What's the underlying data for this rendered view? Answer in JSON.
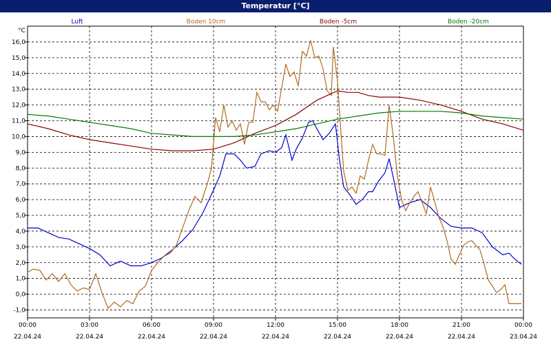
{
  "chart_data": {
    "type": "line",
    "title": "Temperatur [°C]",
    "yunit": "°C",
    "xlim": [
      0,
      24
    ],
    "ylim": [
      -1.5,
      17.0
    ],
    "yticks": [
      -1.0,
      0.0,
      1.0,
      2.0,
      3.0,
      4.0,
      5.0,
      6.0,
      7.0,
      8.0,
      9.0,
      10.0,
      11.0,
      12.0,
      13.0,
      14.0,
      15.0,
      16.0
    ],
    "ytick_labels": [
      "-1,0",
      "0,0",
      "1,0",
      "2,0",
      "3,0",
      "4,0",
      "5,0",
      "6,0",
      "7,0",
      "8,0",
      "9,0",
      "10,0",
      "11,0",
      "12,0",
      "13,0",
      "14,0",
      "15,0",
      "16,0"
    ],
    "xticks": [
      {
        "hour": 0,
        "time": "00:00",
        "date": "22.04.24"
      },
      {
        "hour": 3,
        "time": "03:00",
        "date": "22.04.24"
      },
      {
        "hour": 6,
        "time": "06:00",
        "date": "22.04.24"
      },
      {
        "hour": 9,
        "time": "09:00",
        "date": "22.04.24"
      },
      {
        "hour": 12,
        "time": "12:00",
        "date": "22.04.24"
      },
      {
        "hour": 15,
        "time": "15:00",
        "date": "22.04.24"
      },
      {
        "hour": 18,
        "time": "18:00",
        "date": "22.04.24"
      },
      {
        "hour": 21,
        "time": "21:00",
        "date": "22.04.24"
      },
      {
        "hour": 24,
        "time": "00:00",
        "date": "23.04.24"
      }
    ],
    "grid": true,
    "legend_position": "top",
    "series": [
      {
        "name": "Luft",
        "color": "#0000cc",
        "points": [
          [
            0,
            4.2
          ],
          [
            0.5,
            4.2
          ],
          [
            1.0,
            3.9
          ],
          [
            1.5,
            3.6
          ],
          [
            2.0,
            3.5
          ],
          [
            2.5,
            3.2
          ],
          [
            3.0,
            2.9
          ],
          [
            3.5,
            2.5
          ],
          [
            4.0,
            1.8
          ],
          [
            4.5,
            2.1
          ],
          [
            5.0,
            1.8
          ],
          [
            5.5,
            1.8
          ],
          [
            6.0,
            2.0
          ],
          [
            6.5,
            2.3
          ],
          [
            7.0,
            2.8
          ],
          [
            7.5,
            3.4
          ],
          [
            8.0,
            4.1
          ],
          [
            8.5,
            5.2
          ],
          [
            9.0,
            6.6
          ],
          [
            9.3,
            7.5
          ],
          [
            9.6,
            8.9
          ],
          [
            10.0,
            8.9
          ],
          [
            10.3,
            8.5
          ],
          [
            10.6,
            8.0
          ],
          [
            11.0,
            8.1
          ],
          [
            11.3,
            8.9
          ],
          [
            11.7,
            9.1
          ],
          [
            12.0,
            9.0
          ],
          [
            12.3,
            9.3
          ],
          [
            12.5,
            10.1
          ],
          [
            12.8,
            8.5
          ],
          [
            13.0,
            9.2
          ],
          [
            13.3,
            9.9
          ],
          [
            13.6,
            10.9
          ],
          [
            13.8,
            11.0
          ],
          [
            14.0,
            10.5
          ],
          [
            14.3,
            9.8
          ],
          [
            14.6,
            10.2
          ],
          [
            14.9,
            10.8
          ],
          [
            15.1,
            8.5
          ],
          [
            15.3,
            6.8
          ],
          [
            15.6,
            6.3
          ],
          [
            15.9,
            5.7
          ],
          [
            16.2,
            6.0
          ],
          [
            16.5,
            6.5
          ],
          [
            16.7,
            6.5
          ],
          [
            17.0,
            7.2
          ],
          [
            17.3,
            7.7
          ],
          [
            17.5,
            8.6
          ],
          [
            17.7,
            7.4
          ],
          [
            18.0,
            5.5
          ],
          [
            18.5,
            5.8
          ],
          [
            19.0,
            6.0
          ],
          [
            19.5,
            5.5
          ],
          [
            20.0,
            4.8
          ],
          [
            20.5,
            4.3
          ],
          [
            21.0,
            4.2
          ],
          [
            21.5,
            4.2
          ],
          [
            22.0,
            3.9
          ],
          [
            22.5,
            3.0
          ],
          [
            23.0,
            2.5
          ],
          [
            23.3,
            2.6
          ],
          [
            23.6,
            2.2
          ],
          [
            23.9,
            1.9
          ]
        ]
      },
      {
        "name": "Boden 10cm",
        "color": "#b06a1e",
        "points": [
          [
            0,
            1.4
          ],
          [
            0.3,
            1.6
          ],
          [
            0.6,
            1.5
          ],
          [
            0.9,
            0.9
          ],
          [
            1.2,
            1.3
          ],
          [
            1.5,
            0.8
          ],
          [
            1.8,
            1.3
          ],
          [
            2.1,
            0.6
          ],
          [
            2.4,
            0.2
          ],
          [
            2.7,
            0.4
          ],
          [
            3.0,
            0.3
          ],
          [
            3.3,
            1.3
          ],
          [
            3.6,
            0.1
          ],
          [
            3.9,
            -0.9
          ],
          [
            4.2,
            -0.5
          ],
          [
            4.5,
            -0.8
          ],
          [
            4.8,
            -0.4
          ],
          [
            5.1,
            -0.6
          ],
          [
            5.4,
            0.2
          ],
          [
            5.7,
            0.5
          ],
          [
            6.0,
            1.5
          ],
          [
            6.3,
            2.0
          ],
          [
            6.6,
            2.4
          ],
          [
            6.9,
            2.6
          ],
          [
            7.2,
            3.1
          ],
          [
            7.5,
            4.2
          ],
          [
            7.8,
            5.3
          ],
          [
            8.1,
            6.2
          ],
          [
            8.4,
            5.8
          ],
          [
            8.7,
            7.0
          ],
          [
            8.9,
            8.0
          ],
          [
            9.1,
            11.2
          ],
          [
            9.3,
            10.3
          ],
          [
            9.5,
            12.0
          ],
          [
            9.7,
            10.6
          ],
          [
            9.9,
            11.0
          ],
          [
            10.1,
            10.4
          ],
          [
            10.3,
            10.8
          ],
          [
            10.5,
            9.5
          ],
          [
            10.7,
            10.9
          ],
          [
            10.9,
            10.9
          ],
          [
            11.1,
            12.8
          ],
          [
            11.3,
            12.2
          ],
          [
            11.5,
            12.2
          ],
          [
            11.7,
            11.7
          ],
          [
            11.9,
            12.0
          ],
          [
            12.1,
            11.6
          ],
          [
            12.3,
            13.1
          ],
          [
            12.5,
            14.6
          ],
          [
            12.7,
            13.8
          ],
          [
            12.9,
            14.1
          ],
          [
            13.1,
            13.2
          ],
          [
            13.3,
            15.4
          ],
          [
            13.5,
            15.1
          ],
          [
            13.7,
            16.1
          ],
          [
            13.9,
            15.0
          ],
          [
            14.1,
            15.1
          ],
          [
            14.3,
            14.3
          ],
          [
            14.5,
            12.9
          ],
          [
            14.7,
            12.6
          ],
          [
            14.8,
            15.7
          ],
          [
            15.0,
            13.5
          ],
          [
            15.2,
            9.6
          ],
          [
            15.3,
            7.8
          ],
          [
            15.5,
            6.6
          ],
          [
            15.7,
            6.8
          ],
          [
            15.9,
            6.4
          ],
          [
            16.1,
            7.5
          ],
          [
            16.3,
            7.3
          ],
          [
            16.5,
            8.5
          ],
          [
            16.7,
            9.5
          ],
          [
            16.9,
            8.9
          ],
          [
            17.1,
            8.9
          ],
          [
            17.3,
            8.8
          ],
          [
            17.5,
            12.0
          ],
          [
            17.7,
            10.0
          ],
          [
            17.9,
            7.5
          ],
          [
            18.1,
            6.0
          ],
          [
            18.3,
            5.3
          ],
          [
            18.5,
            5.8
          ],
          [
            18.7,
            6.2
          ],
          [
            18.9,
            6.5
          ],
          [
            19.1,
            5.8
          ],
          [
            19.3,
            5.1
          ],
          [
            19.5,
            6.8
          ],
          [
            19.7,
            5.9
          ],
          [
            19.9,
            4.9
          ],
          [
            20.1,
            4.3
          ],
          [
            20.3,
            3.4
          ],
          [
            20.5,
            2.2
          ],
          [
            20.7,
            1.9
          ],
          [
            20.9,
            2.5
          ],
          [
            21.1,
            3.1
          ],
          [
            21.3,
            3.3
          ],
          [
            21.5,
            3.4
          ],
          [
            21.7,
            3.1
          ],
          [
            21.9,
            2.8
          ],
          [
            22.1,
            1.9
          ],
          [
            22.3,
            0.9
          ],
          [
            22.5,
            0.5
          ],
          [
            22.7,
            0.1
          ],
          [
            22.9,
            0.3
          ],
          [
            23.1,
            0.6
          ],
          [
            23.3,
            -0.6
          ],
          [
            23.6,
            -0.6
          ],
          [
            23.9,
            -0.6
          ]
        ]
      },
      {
        "name": "Boden -5cm",
        "color": "#8b0000",
        "points": [
          [
            0,
            10.8
          ],
          [
            1.0,
            10.5
          ],
          [
            2.0,
            10.1
          ],
          [
            3.0,
            9.8
          ],
          [
            4.0,
            9.6
          ],
          [
            5.0,
            9.4
          ],
          [
            6.0,
            9.2
          ],
          [
            7.0,
            9.1
          ],
          [
            8.0,
            9.1
          ],
          [
            9.0,
            9.2
          ],
          [
            10.0,
            9.6
          ],
          [
            11.0,
            10.2
          ],
          [
            12.0,
            10.7
          ],
          [
            13.0,
            11.4
          ],
          [
            14.0,
            12.3
          ],
          [
            14.5,
            12.6
          ],
          [
            15.0,
            12.9
          ],
          [
            15.5,
            12.8
          ],
          [
            16.0,
            12.8
          ],
          [
            16.5,
            12.6
          ],
          [
            17.0,
            12.5
          ],
          [
            18.0,
            12.5
          ],
          [
            19.0,
            12.3
          ],
          [
            20.0,
            12.0
          ],
          [
            21.0,
            11.6
          ],
          [
            22.0,
            11.1
          ],
          [
            23.0,
            10.8
          ],
          [
            24.0,
            10.4
          ]
        ]
      },
      {
        "name": "Boden -20cm",
        "color": "#007a00",
        "points": [
          [
            0,
            11.4
          ],
          [
            1.0,
            11.3
          ],
          [
            2.0,
            11.1
          ],
          [
            3.0,
            10.9
          ],
          [
            4.0,
            10.7
          ],
          [
            5.0,
            10.5
          ],
          [
            6.0,
            10.2
          ],
          [
            7.0,
            10.1
          ],
          [
            8.0,
            10.0
          ],
          [
            9.0,
            10.0
          ],
          [
            10.0,
            10.0
          ],
          [
            11.0,
            10.1
          ],
          [
            12.0,
            10.3
          ],
          [
            13.0,
            10.5
          ],
          [
            14.0,
            10.8
          ],
          [
            15.0,
            11.1
          ],
          [
            16.0,
            11.3
          ],
          [
            17.0,
            11.5
          ],
          [
            18.0,
            11.6
          ],
          [
            19.0,
            11.6
          ],
          [
            20.0,
            11.6
          ],
          [
            21.0,
            11.5
          ],
          [
            22.0,
            11.3
          ],
          [
            23.0,
            11.2
          ],
          [
            24.0,
            11.1
          ]
        ]
      }
    ]
  }
}
